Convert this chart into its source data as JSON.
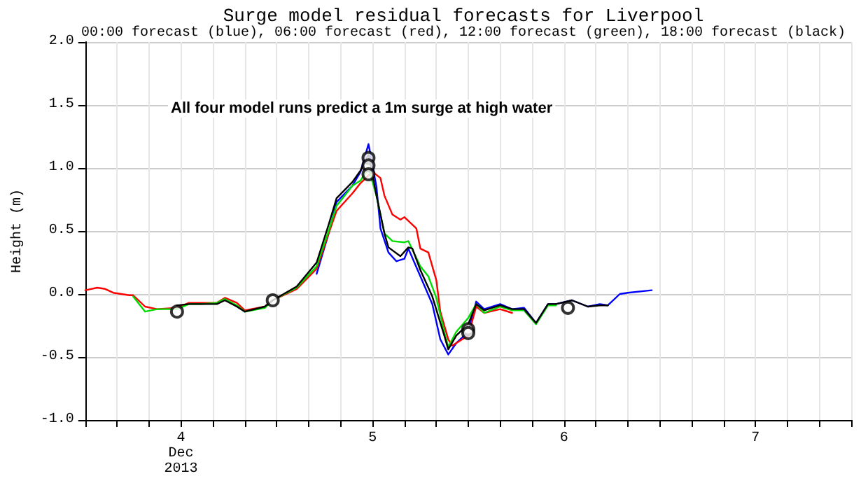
{
  "chart_data": {
    "type": "line",
    "title": "Surge model residual forecasts for Liverpool",
    "subtitle": "00:00 forecast (blue), 06:00 forecast (red), 12:00 forecast (green), 18:00 forecast (black)",
    "ylabel": "Height (m)",
    "annotations": [
      "All four model runs predict a 1m surge at high water"
    ],
    "xlim": [
      "2013-12-04T00:00",
      "2013-12-08T00:00"
    ],
    "xticks": [
      {
        "value": "2013-12-04T00:00",
        "label": null
      },
      {
        "value": "2013-12-04T04:00",
        "label": null
      },
      {
        "value": "2013-12-04T08:00",
        "label": null
      },
      {
        "value": "2013-12-04T12:00",
        "label": "4\nDec\n2013"
      },
      {
        "value": "2013-12-04T16:00",
        "label": null
      },
      {
        "value": "2013-12-04T20:00",
        "label": null
      },
      {
        "value": "2013-12-05T00:00",
        "label": null
      },
      {
        "value": "2013-12-05T04:00",
        "label": null
      },
      {
        "value": "2013-12-05T08:00",
        "label": null
      },
      {
        "value": "2013-12-05T12:00",
        "label": "5"
      },
      {
        "value": "2013-12-05T16:00",
        "label": null
      },
      {
        "value": "2013-12-05T20:00",
        "label": null
      },
      {
        "value": "2013-12-06T00:00",
        "label": null
      },
      {
        "value": "2013-12-06T04:00",
        "label": null
      },
      {
        "value": "2013-12-06T08:00",
        "label": null
      },
      {
        "value": "2013-12-06T12:00",
        "label": "6"
      },
      {
        "value": "2013-12-06T16:00",
        "label": null
      },
      {
        "value": "2013-12-06T20:00",
        "label": null
      },
      {
        "value": "2013-12-07T00:00",
        "label": null
      },
      {
        "value": "2013-12-07T04:00",
        "label": null
      },
      {
        "value": "2013-12-07T08:00",
        "label": null
      },
      {
        "value": "2013-12-07T12:00",
        "label": "7"
      },
      {
        "value": "2013-12-07T16:00",
        "label": null
      },
      {
        "value": "2013-12-07T20:00",
        "label": null
      },
      {
        "value": "2013-12-08T00:00",
        "label": null
      }
    ],
    "ylim": [
      -1,
      2
    ],
    "yticks": [
      {
        "value": -1,
        "label": "-1.0"
      },
      {
        "value": -0.5,
        "label": "-0.5"
      },
      {
        "value": 0,
        "label": "0.0"
      },
      {
        "value": 0.5,
        "label": "0.5"
      },
      {
        "value": 1,
        "label": "1.0"
      },
      {
        "value": 1.5,
        "label": "1.5"
      },
      {
        "value": 2,
        "label": "2.0"
      }
    ],
    "grid": true,
    "marker": "none",
    "line_style": "solid",
    "series": [
      {
        "color": "#0000ff",
        "x": [
          "2013-12-05T05:00",
          "2013-12-05T06:30",
          "2013-12-05T07:30",
          "2013-12-05T09:30",
          "2013-12-05T10:30",
          "2013-12-05T11:30",
          "2013-12-05T12:30",
          "2013-12-05T13:00",
          "2013-12-05T14:00",
          "2013-12-05T15:00",
          "2013-12-05T16:00",
          "2013-12-05T16:30",
          "2013-12-05T18:00",
          "2013-12-05T19:30",
          "2013-12-05T20:30",
          "2013-12-05T21:30",
          "2013-12-05T22:30",
          "2013-12-06T00:00",
          "2013-12-06T01:00",
          "2013-12-06T02:00",
          "2013-12-06T04:00",
          "2013-12-06T05:30",
          "2013-12-06T07:00",
          "2013-12-06T08:30",
          "2013-12-06T10:00",
          "2013-12-06T11:00",
          "2013-12-06T13:00",
          "2013-12-06T15:00",
          "2013-12-06T16:30",
          "2013-12-06T17:30",
          "2013-12-06T19:00",
          "2013-12-06T20:00",
          "2013-12-06T23:00"
        ],
        "values": [
          0.16,
          0.48,
          0.73,
          0.86,
          0.97,
          1.19,
          0.85,
          0.52,
          0.33,
          0.26,
          0.28,
          0.36,
          0.14,
          -0.08,
          -0.36,
          -0.48,
          -0.39,
          -0.3,
          -0.06,
          -0.12,
          -0.08,
          -0.12,
          -0.11,
          -0.23,
          -0.08,
          -0.08,
          -0.05,
          -0.1,
          -0.08,
          -0.09,
          0.0,
          0.01,
          0.03
        ]
      },
      {
        "color": "#ff0000",
        "x": [
          "2013-12-04T00:00",
          "2013-12-04T01:30",
          "2013-12-04T02:30",
          "2013-12-04T03:30",
          "2013-12-04T05:30",
          "2013-12-04T06:00",
          "2013-12-04T07:30",
          "2013-12-04T09:00",
          "2013-12-04T11:30",
          "2013-12-04T13:00",
          "2013-12-04T14:30",
          "2013-12-04T16:30",
          "2013-12-04T17:30",
          "2013-12-04T19:00",
          "2013-12-04T20:00",
          "2013-12-04T22:30",
          "2013-12-04T23:30",
          "2013-12-05T02:30",
          "2013-12-05T05:00",
          "2013-12-05T06:30",
          "2013-12-05T07:30",
          "2013-12-05T09:30",
          "2013-12-05T10:30",
          "2013-12-05T12:00",
          "2013-12-05T13:00",
          "2013-12-05T13:30",
          "2013-12-05T14:30",
          "2013-12-05T15:30",
          "2013-12-05T16:00",
          "2013-12-05T17:30",
          "2013-12-05T18:00",
          "2013-12-05T19:00",
          "2013-12-05T20:00",
          "2013-12-05T20:30",
          "2013-12-05T21:30",
          "2013-12-05T22:00",
          "2013-12-05T23:00",
          "2013-12-06T00:00",
          "2013-12-06T01:00",
          "2013-12-06T02:00",
          "2013-12-06T04:00",
          "2013-12-06T05:30"
        ],
        "values": [
          0.03,
          0.05,
          0.04,
          0.01,
          -0.01,
          -0.01,
          -0.1,
          -0.12,
          -0.11,
          -0.07,
          -0.07,
          -0.07,
          -0.03,
          -0.07,
          -0.13,
          -0.1,
          -0.05,
          0.04,
          0.2,
          0.48,
          0.66,
          0.8,
          0.88,
          0.97,
          0.92,
          0.78,
          0.63,
          0.59,
          0.61,
          0.52,
          0.36,
          0.33,
          0.11,
          -0.14,
          -0.36,
          -0.41,
          -0.37,
          -0.33,
          -0.1,
          -0.15,
          -0.12,
          -0.15
        ]
      },
      {
        "color": "#00dd00",
        "x": [
          "2013-12-04T06:00",
          "2013-12-04T07:30",
          "2013-12-04T09:00",
          "2013-12-04T11:30",
          "2013-12-04T13:00",
          "2013-12-04T14:30",
          "2013-12-04T16:30",
          "2013-12-04T17:30",
          "2013-12-04T19:00",
          "2013-12-04T20:00",
          "2013-12-04T22:30",
          "2013-12-04T23:30",
          "2013-12-05T02:30",
          "2013-12-05T05:00",
          "2013-12-05T06:30",
          "2013-12-05T07:30",
          "2013-12-05T09:30",
          "2013-12-05T10:30",
          "2013-12-05T11:30",
          "2013-12-05T12:30",
          "2013-12-05T13:30",
          "2013-12-05T14:30",
          "2013-12-05T16:00",
          "2013-12-05T16:30",
          "2013-12-05T18:00",
          "2013-12-05T19:00",
          "2013-12-05T20:00",
          "2013-12-05T21:00",
          "2013-12-05T21:30",
          "2013-12-05T22:30",
          "2013-12-06T00:00",
          "2013-12-06T01:00",
          "2013-12-06T02:00",
          "2013-12-06T04:00",
          "2013-12-06T05:30",
          "2013-12-06T07:00",
          "2013-12-06T08:30",
          "2013-12-06T10:00",
          "2013-12-06T11:00"
        ],
        "values": [
          -0.02,
          -0.14,
          -0.12,
          -0.12,
          -0.08,
          -0.08,
          -0.07,
          -0.04,
          -0.09,
          -0.14,
          -0.11,
          -0.05,
          0.05,
          0.22,
          0.5,
          0.7,
          0.86,
          0.9,
          1.0,
          0.78,
          0.48,
          0.42,
          0.41,
          0.42,
          0.22,
          0.14,
          -0.03,
          -0.3,
          -0.42,
          -0.3,
          -0.19,
          -0.08,
          -0.15,
          -0.1,
          -0.13,
          -0.13,
          -0.24,
          -0.09,
          -0.09
        ]
      },
      {
        "color": "#000000",
        "x": [
          "2013-12-04T11:30",
          "2013-12-04T13:00",
          "2013-12-04T14:30",
          "2013-12-04T16:30",
          "2013-12-04T17:30",
          "2013-12-04T19:00",
          "2013-12-04T20:00",
          "2013-12-04T22:30",
          "2013-12-04T23:30",
          "2013-12-05T02:30",
          "2013-12-05T05:00",
          "2013-12-05T06:30",
          "2013-12-05T07:30",
          "2013-12-05T09:30",
          "2013-12-05T10:30",
          "2013-12-05T11:30",
          "2013-12-05T12:30",
          "2013-12-05T13:30",
          "2013-12-05T14:00",
          "2013-12-05T15:30",
          "2013-12-05T16:30",
          "2013-12-05T17:00",
          "2013-12-05T18:00",
          "2013-12-05T19:30",
          "2013-12-05T21:00",
          "2013-12-05T21:30",
          "2013-12-05T22:30",
          "2013-12-06T00:00",
          "2013-12-06T01:00",
          "2013-12-06T02:00",
          "2013-12-06T04:00",
          "2013-12-06T05:30",
          "2013-12-06T07:00",
          "2013-12-06T08:30",
          "2013-12-06T10:00",
          "2013-12-06T11:00",
          "2013-12-06T13:00",
          "2013-12-06T15:00",
          "2013-12-06T16:30",
          "2013-12-06T17:30"
        ],
        "values": [
          -0.09,
          -0.08,
          -0.08,
          -0.08,
          -0.05,
          -0.1,
          -0.14,
          -0.1,
          -0.05,
          0.06,
          0.25,
          0.55,
          0.76,
          0.89,
          0.98,
          1.11,
          0.78,
          0.48,
          0.37,
          0.3,
          0.37,
          0.36,
          0.19,
          -0.02,
          -0.33,
          -0.44,
          -0.33,
          -0.24,
          -0.08,
          -0.13,
          -0.09,
          -0.12,
          -0.12,
          -0.23,
          -0.08,
          -0.08,
          -0.05,
          -0.1,
          -0.09,
          -0.09
        ]
      },
      {
        "type": "scatter",
        "marker": "circle",
        "color": "#000000",
        "x": [
          "2013-12-04T11:30",
          "2013-12-04T23:30",
          "2013-12-05T11:30",
          "2013-12-05T11:30",
          "2013-12-05T11:30",
          "2013-12-06T00:00",
          "2013-12-06T00:00",
          "2013-12-06T12:30"
        ],
        "values": [
          -0.14,
          -0.05,
          1.08,
          1.02,
          0.95,
          -0.28,
          -0.31,
          -0.11
        ]
      }
    ]
  }
}
